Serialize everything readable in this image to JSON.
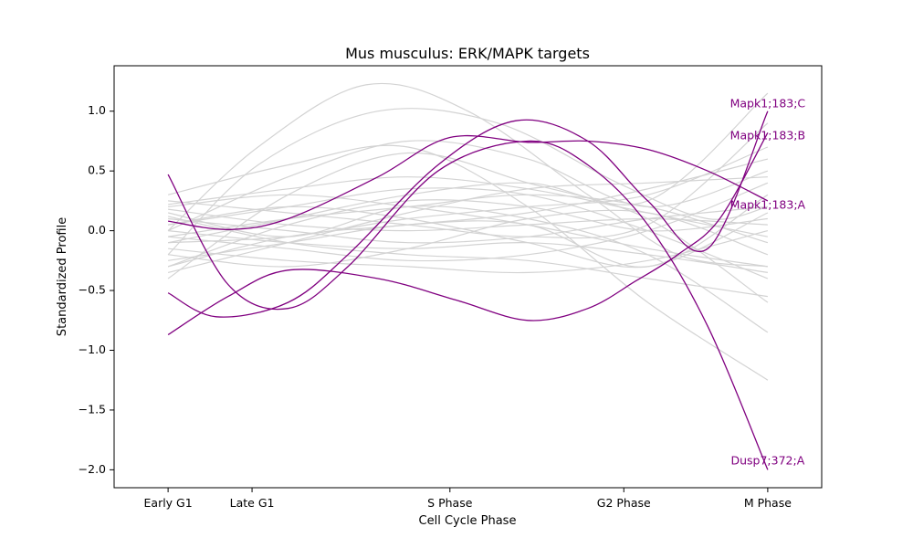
{
  "chart_data": {
    "type": "line",
    "title": "Mus musculus: ERK/MAPK targets",
    "xlabel": "Cell Cycle Phase",
    "ylabel": "Standardized Profile",
    "x_categories": [
      "Early G1",
      "Late G1",
      "S Phase",
      "G2 Phase",
      "M Phase"
    ],
    "x_positions": [
      0.0,
      0.14,
      0.47,
      0.76,
      1.0
    ],
    "xlim": [
      -0.09,
      1.09
    ],
    "ylim": [
      -2.15,
      1.38
    ],
    "yticks": [
      -2.0,
      -1.5,
      -1.0,
      -0.5,
      0.0,
      0.5,
      1.0
    ],
    "ytick_labels": [
      "−2.0",
      "−1.5",
      "−1.0",
      "−0.5",
      "0.0",
      "0.5",
      "1.0"
    ],
    "grid": false,
    "highlight_color": "#800080",
    "background_color": "#d3d3d3",
    "highlighted_series": [
      {
        "name": "Mapk1;183;C",
        "x": [
          0.0,
          0.08,
          0.2,
          0.3,
          0.45,
          0.58,
          0.7,
          0.8,
          0.9,
          1.0
        ],
        "y": [
          -0.52,
          -0.72,
          -0.6,
          -0.2,
          0.55,
          0.92,
          0.75,
          0.25,
          -0.15,
          1.0
        ]
      },
      {
        "name": "Mapk1;183;B",
        "x": [
          0.0,
          0.1,
          0.2,
          0.35,
          0.48,
          0.6,
          0.7,
          0.78,
          0.85,
          0.92,
          1.0
        ],
        "y": [
          -0.87,
          -0.55,
          -0.33,
          -0.4,
          -0.58,
          -0.75,
          -0.65,
          -0.42,
          -0.2,
          0.1,
          0.82
        ]
      },
      {
        "name": "Mapk1;183;A",
        "x": [
          0.0,
          0.1,
          0.2,
          0.35,
          0.47,
          0.6,
          0.7,
          0.8,
          0.9,
          1.0
        ],
        "y": [
          0.08,
          0.01,
          0.1,
          0.45,
          0.78,
          0.74,
          0.75,
          0.68,
          0.5,
          0.25
        ]
      },
      {
        "name": "Dusp7;372;A",
        "x": [
          0.0,
          0.1,
          0.2,
          0.3,
          0.45,
          0.6,
          0.7,
          0.8,
          0.9,
          1.0
        ],
        "y": [
          0.47,
          -0.45,
          -0.65,
          -0.3,
          0.5,
          0.75,
          0.55,
          0.05,
          -0.8,
          -2.0
        ]
      }
    ],
    "background_series": [
      {
        "x": [
          0.0,
          0.15,
          0.33,
          0.5,
          0.7,
          0.85,
          1.0
        ],
        "y": [
          0.0,
          0.7,
          1.22,
          1.0,
          0.3,
          -0.2,
          -0.3
        ]
      },
      {
        "x": [
          0.0,
          0.15,
          0.35,
          0.55,
          0.75,
          0.9,
          1.0
        ],
        "y": [
          -0.2,
          0.55,
          1.0,
          0.9,
          0.4,
          0.1,
          0.2
        ]
      },
      {
        "x": [
          0.0,
          0.2,
          0.4,
          0.6,
          0.8,
          1.0
        ],
        "y": [
          -0.4,
          0.3,
          0.65,
          0.4,
          0.1,
          -0.6
        ]
      },
      {
        "x": [
          0.0,
          0.2,
          0.4,
          0.6,
          0.8,
          1.0
        ],
        "y": [
          0.3,
          0.55,
          0.7,
          0.2,
          -0.6,
          -1.25
        ]
      },
      {
        "x": [
          0.0,
          0.2,
          0.4,
          0.6,
          0.8,
          1.0
        ],
        "y": [
          0.15,
          -0.05,
          0.2,
          0.1,
          -0.2,
          -0.85
        ]
      },
      {
        "x": [
          0.0,
          0.2,
          0.4,
          0.6,
          0.8,
          1.0
        ],
        "y": [
          -0.1,
          0.1,
          0.3,
          0.4,
          0.25,
          1.15
        ]
      },
      {
        "x": [
          0.0,
          0.2,
          0.4,
          0.6,
          0.8,
          1.0
        ],
        "y": [
          0.25,
          0.15,
          0.05,
          -0.05,
          0.05,
          0.9
        ]
      },
      {
        "x": [
          0.0,
          0.2,
          0.4,
          0.6,
          0.8,
          1.0
        ],
        "y": [
          -0.3,
          -0.05,
          0.05,
          0.15,
          0.35,
          0.6
        ]
      },
      {
        "x": [
          0.0,
          0.2,
          0.4,
          0.6,
          0.8,
          1.0
        ],
        "y": [
          0.05,
          0.2,
          0.35,
          0.3,
          0.0,
          -0.4
        ]
      },
      {
        "x": [
          0.0,
          0.2,
          0.4,
          0.6,
          0.8,
          1.0
        ],
        "y": [
          -0.05,
          -0.15,
          -0.25,
          -0.2,
          0.0,
          0.4
        ]
      },
      {
        "x": [
          0.0,
          0.2,
          0.4,
          0.6,
          0.8,
          1.0
        ],
        "y": [
          0.1,
          0.0,
          -0.1,
          -0.05,
          0.1,
          0.2
        ]
      },
      {
        "x": [
          0.0,
          0.2,
          0.4,
          0.6,
          0.8,
          1.0
        ],
        "y": [
          -0.15,
          -0.25,
          -0.3,
          -0.35,
          -0.25,
          0.0
        ]
      },
      {
        "x": [
          0.0,
          0.2,
          0.4,
          0.6,
          0.8,
          1.0
        ],
        "y": [
          0.2,
          0.3,
          0.2,
          0.05,
          -0.15,
          -0.3
        ]
      },
      {
        "x": [
          0.0,
          0.2,
          0.4,
          0.6,
          0.8,
          1.0
        ],
        "y": [
          -0.25,
          -0.1,
          0.05,
          0.05,
          -0.3,
          0.3
        ]
      },
      {
        "x": [
          0.0,
          0.2,
          0.4,
          0.6,
          0.8,
          1.0
        ],
        "y": [
          0.0,
          0.45,
          0.75,
          0.6,
          0.2,
          0.5
        ]
      },
      {
        "x": [
          0.0,
          0.2,
          0.4,
          0.6,
          0.8,
          1.0
        ],
        "y": [
          -0.05,
          0.1,
          0.2,
          0.3,
          0.2,
          -0.1
        ]
      },
      {
        "x": [
          0.0,
          0.2,
          0.4,
          0.6,
          0.8,
          1.0
        ],
        "y": [
          0.12,
          -0.1,
          -0.2,
          -0.25,
          -0.4,
          -0.55
        ]
      },
      {
        "x": [
          0.0,
          0.2,
          0.4,
          0.6,
          0.8,
          1.0
        ],
        "y": [
          -0.35,
          -0.1,
          0.15,
          0.35,
          0.4,
          0.45
        ]
      },
      {
        "x": [
          0.0,
          0.2,
          0.4,
          0.6,
          0.8,
          1.0
        ],
        "y": [
          0.05,
          0.2,
          0.1,
          -0.1,
          -0.3,
          0.15
        ]
      },
      {
        "x": [
          0.0,
          0.2,
          0.4,
          0.6,
          0.8,
          1.0
        ],
        "y": [
          -0.2,
          -0.3,
          -0.15,
          0.1,
          0.15,
          -0.2
        ]
      },
      {
        "x": [
          0.0,
          0.2,
          0.4,
          0.6,
          0.8,
          1.0
        ],
        "y": [
          0.18,
          0.05,
          0.0,
          0.05,
          0.1,
          0.05
        ]
      },
      {
        "x": [
          0.0,
          0.2,
          0.4,
          0.6,
          0.8,
          1.0
        ],
        "y": [
          -0.1,
          -0.05,
          0.1,
          0.2,
          0.3,
          0.7
        ]
      },
      {
        "x": [
          0.0,
          0.2,
          0.4,
          0.6,
          0.8,
          1.0
        ],
        "y": [
          0.0,
          -0.1,
          -0.15,
          -0.1,
          -0.2,
          -0.35
        ]
      },
      {
        "x": [
          0.0,
          0.2,
          0.4,
          0.6,
          0.8,
          1.0
        ],
        "y": [
          -0.3,
          0.05,
          0.25,
          0.2,
          0.0,
          0.1
        ]
      },
      {
        "x": [
          0.0,
          0.2,
          0.4,
          0.6,
          0.8,
          1.0
        ],
        "y": [
          0.22,
          0.35,
          0.45,
          0.35,
          0.15,
          -0.05
        ]
      }
    ],
    "annotations": [
      {
        "text": "Mapk1;183;C",
        "x": 1.0,
        "y": 1.06
      },
      {
        "text": "Mapk1;183;B",
        "x": 1.0,
        "y": 0.79
      },
      {
        "text": "Mapk1;183;A",
        "x": 1.0,
        "y": 0.21
      },
      {
        "text": "Dusp7;372;A",
        "x": 1.0,
        "y": -1.93
      }
    ]
  }
}
